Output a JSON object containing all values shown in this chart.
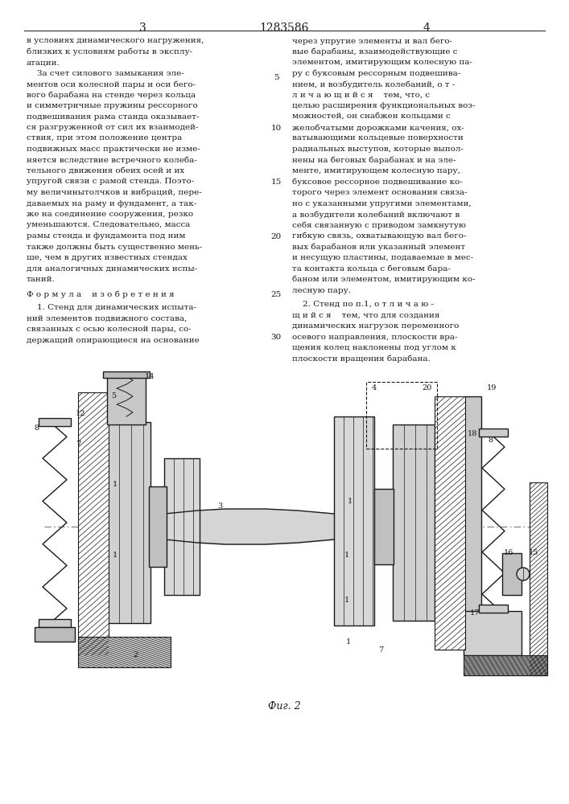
{
  "page_number_left": "3",
  "page_number_center": "1283586",
  "page_number_right": "4",
  "background_color": "#ffffff",
  "text_color": "#1a1a1a",
  "left_text_full": [
    "в условиях динамического нагружения,",
    "близких к условиям работы в эксплу-",
    "атации.",
    "    За счет силового замыкания эле-",
    "ментов оси колесной пары и оси бего-",
    "вого барабана на стенде через кольца",
    "и симметричные пружины рессорного",
    "подвешивания рама станда оказывает-",
    "ся разгруженной от сил их взаимодей-",
    "ствия, при этом положение центра",
    "подвижных масс практически не изме-",
    "няется вследствие встречного колеба-",
    "тельного движения обеих осей и их",
    "упругой связи с рамой стенда. Поэто-",
    "му величинытолчков и вибраций, пере-",
    "даваемых на раму и фундамент, а так-",
    "же на соединение сооружения, резко",
    "уменьшаются. Следовательно, масса",
    "рамы стенда и фундамента под ним",
    "также должны быть существенно мень-",
    "ше, чем в других известных стендах",
    "для аналогичных динамических испы-",
    "таний."
  ],
  "right_text_full": [
    "через упругие элементы и вал бего-",
    "вые барабаны, взаимодействующие с",
    "элементом, имитирующим колесную па-",
    "ру с буксовым рессорным подвешива-",
    "нием, и возбудитель колебаний, о т -",
    "л и ч а ю щ и й с я    тем, что, с",
    "целью расширения функциональных воз-",
    "можностей, он снабжен кольцами с",
    "желобчатыми дорожками качения, ох-",
    "ватывающими кольцевые поверхности",
    "радиальных выступов, которые выпол-",
    "нены на беговых барабанах и на эле-",
    "менте, имитирующем колесную пару,",
    "буксовое рессорное подвешивание ко-",
    "торого через элемент основания связа-",
    "но с указанными упругими элементами,",
    "а возбудители колебаний включают в",
    "себя связанную с приводом замкнутую",
    "гибкую связь, охватывающую вал бего-",
    "вых барабанов или указанный элемент",
    "и несущую пластины, подаваемые в мес-",
    "та контакта кольца с беговым бара-",
    "баном или элементом, имитирующим ко-",
    "лесную пару."
  ],
  "formula_text": "Ф о р м у л а    и з о б р е т е н и я",
  "formula_item1": [
    "    1. Стенд для динамических испыта-",
    "ний элементов подвижного состава,",
    "связанных с осью колесной пары, со-",
    "держащий опирающиеся на основание"
  ],
  "item2_right": [
    "    2. Стенд по п.1, о т л и ч а ю -",
    "щ и й с я    тем, что для создания",
    "динамических нагрузок переменного",
    "осевого направления, плоскости вра-",
    "щения колец наклонены под углом к",
    "плоскости вращения барабана."
  ],
  "fig_caption": "Фиг. 2",
  "line_numbers_col": [
    "5",
    "10",
    "15",
    "20",
    "25",
    "30"
  ],
  "line_num_y_pos": [
    92,
    155,
    222,
    290,
    362,
    415
  ]
}
